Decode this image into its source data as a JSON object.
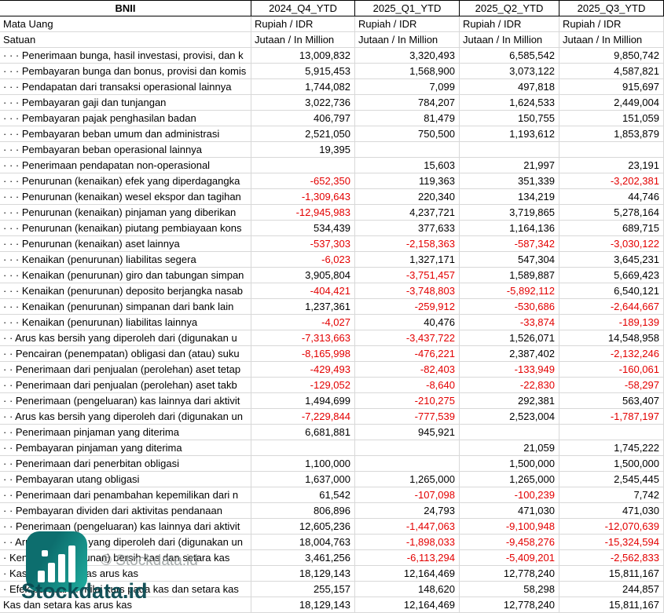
{
  "table": {
    "ticker": "BNII",
    "columns": [
      "2024_Q4_YTD",
      "2025_Q1_YTD",
      "2025_Q2_YTD",
      "2025_Q3_YTD"
    ],
    "meta_rows": [
      {
        "label": "Mata Uang",
        "values": [
          "Rupiah / IDR",
          "Rupiah / IDR",
          "Rupiah / IDR",
          "Rupiah / IDR"
        ]
      },
      {
        "label": "Satuan",
        "values": [
          "Jutaan / In Million",
          "Jutaan / In Million",
          "Jutaan / In Million",
          "Jutaan / In Million"
        ]
      }
    ],
    "rows": [
      {
        "label": "· · · Penerimaan bunga, hasil investasi, provisi, dan k",
        "values": [
          "13,009,832",
          "3,320,493",
          "6,585,542",
          "9,850,742"
        ]
      },
      {
        "label": "· · · Pembayaran bunga dan bonus, provisi dan komis",
        "values": [
          "5,915,453",
          "1,568,900",
          "3,073,122",
          "4,587,821"
        ]
      },
      {
        "label": "· · · Pendapatan dari transaksi operasional lainnya",
        "values": [
          "1,744,082",
          "7,099",
          "497,818",
          "915,697"
        ]
      },
      {
        "label": "· · · Pembayaran gaji dan tunjangan",
        "values": [
          "3,022,736",
          "784,207",
          "1,624,533",
          "2,449,004"
        ]
      },
      {
        "label": "· · · Pembayaran pajak penghasilan badan",
        "values": [
          "406,797",
          "81,479",
          "150,755",
          "151,059"
        ]
      },
      {
        "label": "· · · Pembayaran beban umum dan administrasi",
        "values": [
          "2,521,050",
          "750,500",
          "1,193,612",
          "1,853,879"
        ]
      },
      {
        "label": "· · · Pembayaran beban operasional lainnya",
        "values": [
          "19,395",
          "",
          "",
          ""
        ]
      },
      {
        "label": "· · · Penerimaan pendapatan non-operasional",
        "values": [
          "",
          "15,603",
          "21,997",
          "23,191"
        ]
      },
      {
        "label": "· · · Penurunan (kenaikan) efek yang diperdagangka",
        "values": [
          "-652,350",
          "119,363",
          "351,339",
          "-3,202,381"
        ]
      },
      {
        "label": "· · · Penurunan (kenaikan) wesel ekspor dan tagihan",
        "values": [
          "-1,309,643",
          "220,340",
          "134,219",
          "44,746"
        ]
      },
      {
        "label": "· · · Penurunan (kenaikan) pinjaman yang diberikan",
        "values": [
          "-12,945,983",
          "4,237,721",
          "3,719,865",
          "5,278,164"
        ]
      },
      {
        "label": "· · · Penurunan (kenaikan) piutang pembiayaan kons",
        "values": [
          "534,439",
          "377,633",
          "1,164,136",
          "689,715"
        ]
      },
      {
        "label": "· · · Penurunan (kenaikan) aset lainnya",
        "values": [
          "-537,303",
          "-2,158,363",
          "-587,342",
          "-3,030,122"
        ]
      },
      {
        "label": "· · · Kenaikan (penurunan) liabilitas segera",
        "values": [
          "-6,023",
          "1,327,171",
          "547,304",
          "3,645,231"
        ]
      },
      {
        "label": "· · · Kenaikan (penurunan) giro dan tabungan simpan",
        "values": [
          "3,905,804",
          "-3,751,457",
          "1,589,887",
          "5,669,423"
        ]
      },
      {
        "label": "· · · Kenaikan (penurunan) deposito berjangka nasab",
        "values": [
          "-404,421",
          "-3,748,803",
          "-5,892,112",
          "6,540,121"
        ]
      },
      {
        "label": "· · · Kenaikan (penurunan) simpanan dari bank lain",
        "values": [
          "1,237,361",
          "-259,912",
          "-530,686",
          "-2,644,667"
        ]
      },
      {
        "label": "· · · Kenaikan (penurunan) liabilitas lainnya",
        "values": [
          "-4,027",
          "40,476",
          "-33,874",
          "-189,139"
        ]
      },
      {
        "label": "· · Arus kas bersih yang diperoleh dari (digunakan u",
        "values": [
          "-7,313,663",
          "-3,437,722",
          "1,526,071",
          "14,548,958"
        ]
      },
      {
        "label": "· · Pencairan (penempatan) obligasi dan (atau) suku",
        "values": [
          "-8,165,998",
          "-476,221",
          "2,387,402",
          "-2,132,246"
        ]
      },
      {
        "label": "· · Penerimaan dari penjualan (perolehan) aset tetap",
        "values": [
          "-429,493",
          "-82,403",
          "-133,949",
          "-160,061"
        ]
      },
      {
        "label": "· · Penerimaan dari penjualan (perolehan) aset takb",
        "values": [
          "-129,052",
          "-8,640",
          "-22,830",
          "-58,297"
        ]
      },
      {
        "label": "· · Penerimaan (pengeluaran) kas lainnya dari aktivit",
        "values": [
          "1,494,699",
          "-210,275",
          "292,381",
          "563,407"
        ]
      },
      {
        "label": "· · Arus kas bersih yang diperoleh dari (digunakan un",
        "values": [
          "-7,229,844",
          "-777,539",
          "2,523,004",
          "-1,787,197"
        ]
      },
      {
        "label": "· · Penerimaan pinjaman yang diterima",
        "values": [
          "6,681,881",
          "945,921",
          "",
          ""
        ]
      },
      {
        "label": "· · Pembayaran pinjaman yang diterima",
        "values": [
          "",
          "",
          "21,059",
          "1,745,222"
        ]
      },
      {
        "label": "· · Penerimaan dari penerbitan obligasi",
        "values": [
          "1,100,000",
          "",
          "1,500,000",
          "1,500,000"
        ]
      },
      {
        "label": "· · Pembayaran utang obligasi",
        "values": [
          "1,637,000",
          "1,265,000",
          "1,265,000",
          "2,545,445"
        ]
      },
      {
        "label": "· · Penerimaan dari penambahan kepemilikan dari n",
        "values": [
          "61,542",
          "-107,098",
          "-100,239",
          "7,742"
        ]
      },
      {
        "label": "· · Pembayaran dividen dari aktivitas pendanaan",
        "values": [
          "806,896",
          "24,793",
          "471,030",
          "471,030"
        ]
      },
      {
        "label": "· · Penerimaan (pengeluaran) kas lainnya dari aktivit",
        "values": [
          "12,605,236",
          "-1,447,063",
          "-9,100,948",
          "-12,070,639"
        ]
      },
      {
        "label": "· · Arus kas bersih yang diperoleh dari (digunakan un",
        "values": [
          "18,004,763",
          "-1,898,033",
          "-9,458,276",
          "-15,324,594"
        ]
      },
      {
        "label": "· Kenaikan (penurunan) bersih kas dan setara kas",
        "values": [
          "3,461,256",
          "-6,113,294",
          "-5,409,201",
          "-2,562,833"
        ]
      },
      {
        "label": "· Kas dan setara kas arus kas",
        "values": [
          "18,129,143",
          "12,164,469",
          "12,778,240",
          "15,811,167"
        ]
      },
      {
        "label": "· Efek perubahan nilai kurs pada kas dan setara kas",
        "values": [
          "255,157",
          "148,620",
          "58,298",
          "244,857"
        ]
      },
      {
        "label": "Kas dan setara kas arus kas",
        "values": [
          "18,129,143",
          "12,164,469",
          "12,778,240",
          "15,811,167"
        ]
      }
    ]
  },
  "watermark": {
    "brand_text": "Stockdata.id",
    "copyright_text": "© Stockdata.id"
  },
  "colors": {
    "negative": "#e30000",
    "grid": "#d8d8d8",
    "header_border": "#000000",
    "logo_gradient_start": "#0d6e6e",
    "logo_gradient_end": "#1fae9f",
    "brand_text": "#0a4a52",
    "copyright_text": "#9aa0a0"
  }
}
